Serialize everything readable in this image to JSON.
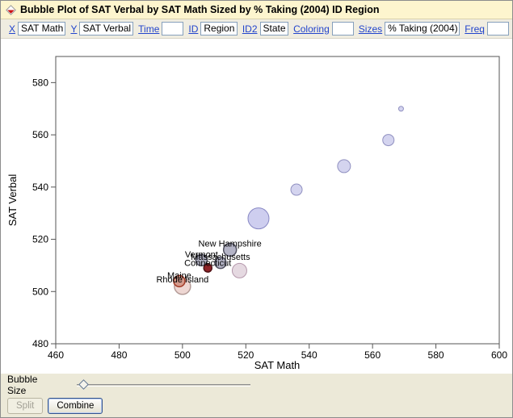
{
  "window": {
    "title": "Bubble Plot of SAT Verbal by SAT Math Sized by % Taking (2004) ID Region"
  },
  "controls": [
    {
      "label": "X",
      "value": "SAT Math"
    },
    {
      "label": "Y",
      "value": "SAT Verbal"
    },
    {
      "label": "Time",
      "value": ""
    },
    {
      "label": "ID",
      "value": "Region"
    },
    {
      "label": "ID2",
      "value": "State"
    },
    {
      "label": "Coloring",
      "value": ""
    },
    {
      "label": "Sizes",
      "value": "% Taking (2004)"
    },
    {
      "label": "Freq",
      "value": ""
    }
  ],
  "bottom": {
    "bubble_size_label": "Bubble Size",
    "split_label": "Split",
    "combine_label": "Combine"
  },
  "chart_data": {
    "type": "scatter",
    "subtype": "bubble",
    "title": "Bubble Plot of SAT Verbal by SAT Math Sized by % Taking (2004) ID Region",
    "xlabel": "SAT Math",
    "ylabel": "SAT Verbal",
    "size_variable": "% Taking (2004)",
    "xlim": [
      460,
      600
    ],
    "ylim": [
      480,
      590
    ],
    "xticks": [
      460,
      480,
      500,
      520,
      540,
      560,
      580,
      600
    ],
    "yticks": [
      480,
      500,
      520,
      540,
      560,
      580
    ],
    "grid": false,
    "points": [
      {
        "x": 569,
        "y": 570,
        "r": 3,
        "label": "",
        "fill": "#cdcdec",
        "stroke": "#9090c0"
      },
      {
        "x": 565,
        "y": 558,
        "r": 7,
        "label": "",
        "fill": "#cdcdec",
        "stroke": "#9090c0"
      },
      {
        "x": 551,
        "y": 548,
        "r": 8,
        "label": "",
        "fill": "#cdcdec",
        "stroke": "#9090c0"
      },
      {
        "x": 536,
        "y": 539,
        "r": 7,
        "label": "",
        "fill": "#cdcdec",
        "stroke": "#9090c0"
      },
      {
        "x": 524,
        "y": 528,
        "r": 13,
        "label": "",
        "fill": "#c5c5ec",
        "stroke": "#8888c4"
      },
      {
        "x": 518,
        "y": 508,
        "r": 9,
        "label": "",
        "fill": "#e0d2dc",
        "stroke": "#b598ac"
      },
      {
        "x": 515,
        "y": 516,
        "r": 8,
        "label": "New Hampshire",
        "fill": "#b4b4c6",
        "stroke": "#50505e"
      },
      {
        "x": 506,
        "y": 512,
        "r": 7,
        "label": "Vermont",
        "fill": "#b4b4c6",
        "stroke": "#50505e"
      },
      {
        "x": 512,
        "y": 511,
        "r": 7,
        "label": "Massachusetts",
        "fill": "#b4b4c6",
        "stroke": "#50505e"
      },
      {
        "x": 508,
        "y": 509,
        "r": 5,
        "label": "Connecticut",
        "fill": "#8e2328",
        "stroke": "#4f1014"
      },
      {
        "x": 500,
        "y": 502,
        "r": 10,
        "label": "Rhode Island",
        "fill": "#eed7d3",
        "stroke": "#b49c98"
      },
      {
        "x": 499,
        "y": 504,
        "r": 7,
        "label": "Maine",
        "fill": "#d49a8c",
        "stroke": "#a23a26"
      }
    ]
  }
}
